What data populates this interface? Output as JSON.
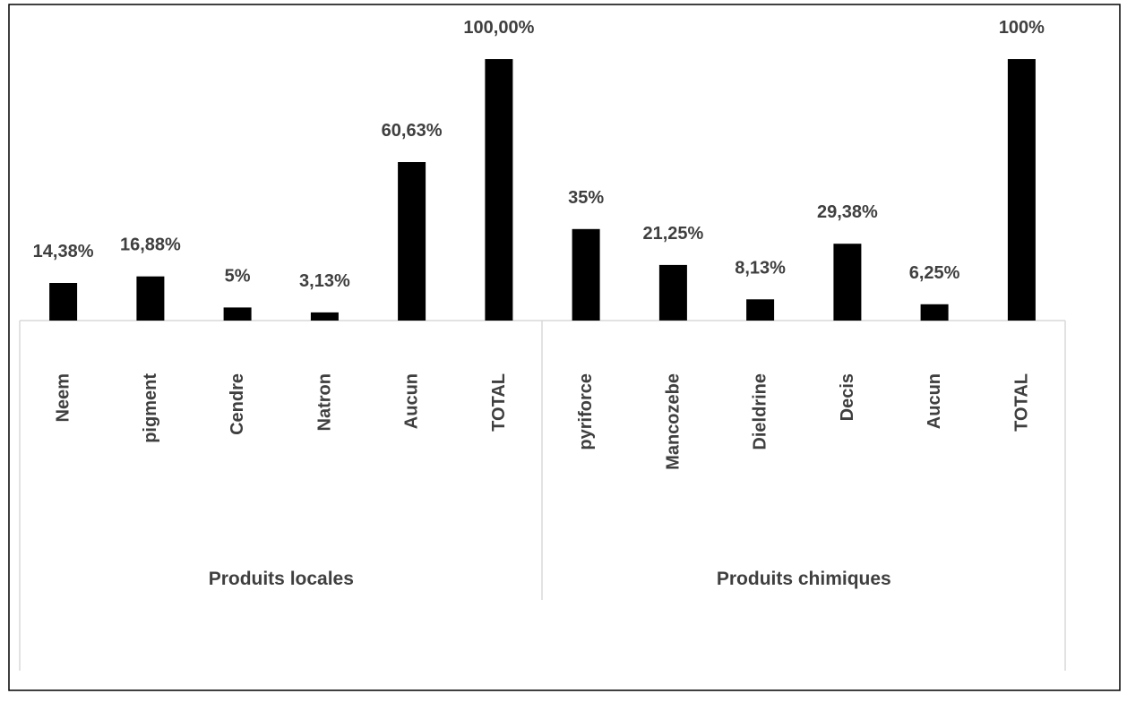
{
  "chart_data": {
    "type": "bar",
    "ylim": [
      0,
      100
    ],
    "grid": false,
    "legend": "none",
    "colors": {
      "bar": "#000000",
      "label": "#3f3f3f",
      "axis": "#d9d9d9",
      "frame": "#000000"
    },
    "groups": [
      {
        "name": "Produits locales",
        "categories": [
          "Neem",
          "pigment",
          "Cendre",
          "Natron",
          "Aucun",
          "TOTAL"
        ],
        "values": [
          14.38,
          16.88,
          5,
          3.13,
          60.63,
          100
        ],
        "labels": [
          "14,38%",
          "16,88%",
          "5%",
          "3,13%",
          "60,63%",
          "100,00%"
        ]
      },
      {
        "name": "Produits chimiques",
        "categories": [
          "pyriforce",
          "Mancozebe",
          "Dieldrine",
          "Decis",
          "Aucun",
          "TOTAL"
        ],
        "values": [
          35,
          21.25,
          8.13,
          29.38,
          6.25,
          100
        ],
        "labels": [
          "35%",
          "21,25%",
          "8,13%",
          "29,38%",
          "6,25%",
          "100%"
        ]
      }
    ]
  }
}
